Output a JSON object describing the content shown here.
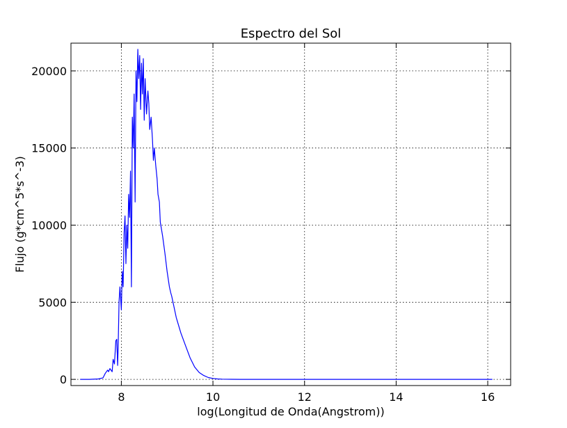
{
  "chart_data": {
    "type": "line",
    "title": "Espectro del Sol",
    "xlabel": "log(Longitud de Onda(Angstrom))",
    "ylabel": "Flujo (g*cm^5*s^-3)",
    "xlim": [
      6.9,
      16.5
    ],
    "ylim": [
      -400,
      21800
    ],
    "xticks": [
      8,
      10,
      12,
      14,
      16
    ],
    "yticks": [
      0,
      5000,
      10000,
      15000,
      20000
    ],
    "grid": true,
    "line_color": "#0000ff",
    "series": [
      {
        "x": [
          7.1,
          7.3,
          7.5,
          7.6,
          7.65,
          7.7,
          7.72,
          7.75,
          7.8,
          7.82,
          7.85,
          7.88,
          7.9,
          7.92,
          7.93,
          7.95,
          7.97,
          8.0,
          8.02,
          8.04,
          8.06,
          8.08,
          8.1,
          8.12,
          8.14,
          8.16,
          8.18,
          8.2,
          8.22,
          8.24,
          8.26,
          8.28,
          8.3,
          8.32,
          8.34,
          8.36,
          8.38,
          8.4,
          8.42,
          8.44,
          8.46,
          8.48,
          8.5,
          8.52,
          8.55,
          8.58,
          8.6,
          8.62,
          8.65,
          8.68,
          8.7,
          8.72,
          8.75,
          8.78,
          8.8,
          8.83,
          8.85,
          8.9,
          8.95,
          9.0,
          9.05,
          9.08,
          9.1,
          9.15,
          9.2,
          9.3,
          9.4,
          9.5,
          9.6,
          9.7,
          9.8,
          9.9,
          10.0,
          10.1,
          10.2,
          10.4,
          10.6,
          10.8,
          11.0,
          11.5,
          12.0,
          13.0,
          14.0,
          15.0,
          16.1
        ],
        "y": [
          0,
          0,
          30,
          100,
          400,
          600,
          500,
          700,
          500,
          1300,
          1000,
          2500,
          2600,
          900,
          2000,
          5000,
          6000,
          4500,
          7000,
          6000,
          9500,
          10600,
          7500,
          10000,
          8500,
          12000,
          10500,
          13500,
          6000,
          17000,
          15000,
          18500,
          11500,
          20000,
          18000,
          21400,
          19500,
          21000,
          17500,
          20500,
          18500,
          20800,
          16800,
          19500,
          17200,
          18700,
          17900,
          16200,
          17000,
          15500,
          14200,
          15000,
          13900,
          13000,
          12000,
          11500,
          10200,
          9300,
          8200,
          7000,
          6000,
          5600,
          5400,
          4700,
          4000,
          3000,
          2200,
          1400,
          800,
          450,
          250,
          120,
          60,
          30,
          15,
          5,
          2,
          1,
          0,
          0,
          0,
          0,
          0,
          0,
          0
        ]
      }
    ]
  }
}
